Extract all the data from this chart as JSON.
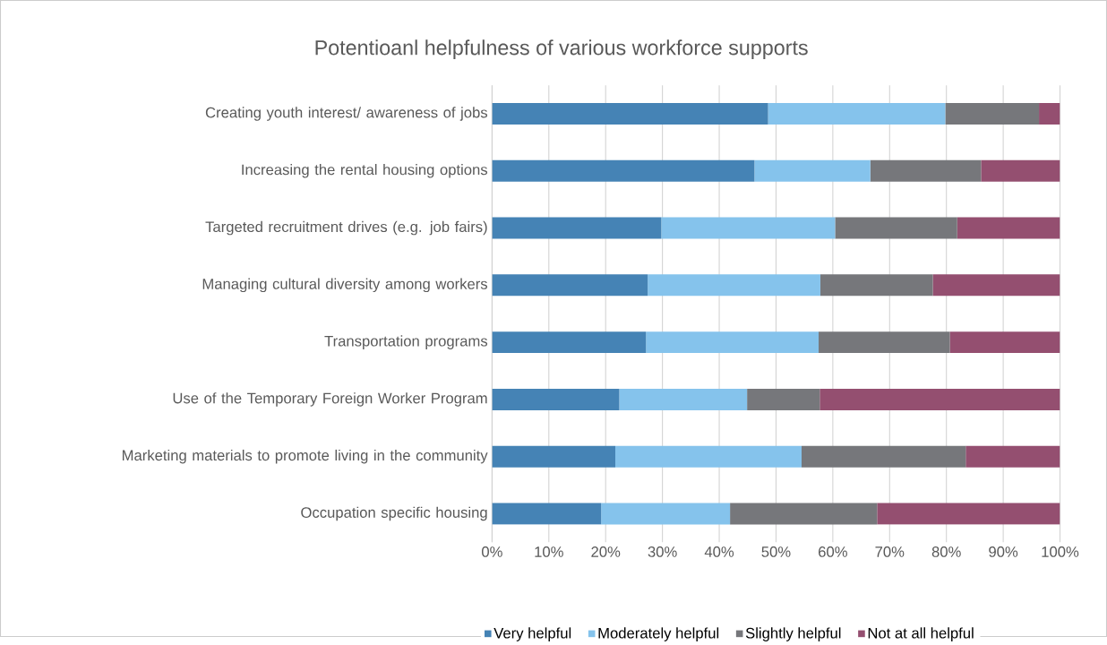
{
  "chart_data": {
    "type": "bar",
    "orientation": "horizontal",
    "stacked": true,
    "title": "Potentioanl helpfulness of various workforce supports",
    "categories": [
      "Creating youth interest/ awareness of jobs",
      "Increasing the rental housing options",
      "Targeted recruitment drives (e.g. job fairs)",
      "Managing cultural diversity among workers",
      "Transportation programs",
      "Use of the Temporary Foreign Worker Program",
      "Marketing materials to promote living in the community",
      "Occupation specific housing"
    ],
    "series": [
      {
        "name": "Very helpful",
        "color": "#4583b5",
        "values": [
          48.6,
          46.2,
          29.8,
          27.4,
          27.1,
          22.4,
          21.7,
          19.2
        ]
      },
      {
        "name": "Moderately helpful",
        "color": "#85c3ec",
        "values": [
          31.2,
          20.4,
          30.6,
          30.4,
          30.4,
          22.5,
          32.8,
          22.7
        ]
      },
      {
        "name": "Slightly helpful",
        "color": "#76777b",
        "values": [
          16.5,
          19.5,
          21.5,
          19.8,
          23.1,
          12.8,
          28.9,
          25.9
        ]
      },
      {
        "name": "Not at all helpful",
        "color": "#944f70",
        "values": [
          3.7,
          13.9,
          18.1,
          22.4,
          19.4,
          42.3,
          16.6,
          32.2
        ]
      }
    ],
    "xlim": [
      0,
      100
    ],
    "xticks": [
      {
        "value": 0,
        "label": "0%"
      },
      {
        "value": 10,
        "label": "10%"
      },
      {
        "value": 20,
        "label": "20%"
      },
      {
        "value": 30,
        "label": "30%"
      },
      {
        "value": 40,
        "label": "40%"
      },
      {
        "value": 50,
        "label": "50%"
      },
      {
        "value": 60,
        "label": "60%"
      },
      {
        "value": 70,
        "label": "70%"
      },
      {
        "value": 80,
        "label": "80%"
      },
      {
        "value": 90,
        "label": "90%"
      },
      {
        "value": 100,
        "label": "100%"
      }
    ],
    "grid": "x",
    "legend": "bottom"
  }
}
